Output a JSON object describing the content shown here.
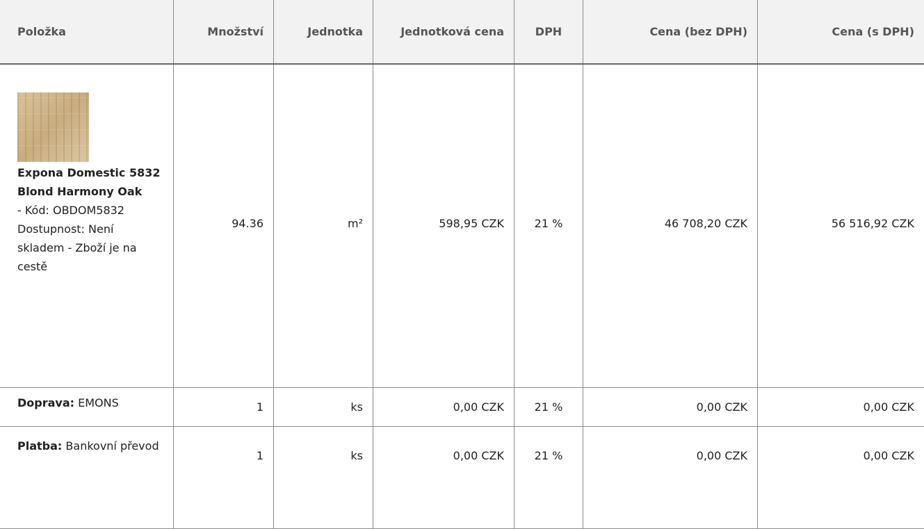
{
  "header": {
    "columns": [
      "Položka",
      "Množství",
      "Jednotka",
      "Jednotková cena",
      "DPH",
      "Cena (bez DPH)",
      "Cena (s DPH)"
    ]
  },
  "table": {
    "rows": [
      {
        "item": {
          "name": "Expona Domestic 5832 Blond Harmony Oak",
          "code": "- Kód: OBDOM5832",
          "availability": "Dostupnost: Není skladem - Zboží je na cestě"
        },
        "cells": [
          "94.36",
          "m²",
          "598,95 CZK",
          "21 %",
          "46 708,20 CZK",
          "56 516,92 CZK"
        ]
      },
      {
        "item": {
          "label": "Doprava:",
          "value": "EMONS"
        },
        "cells": [
          "1",
          "ks",
          "0,00 CZK",
          "21 %",
          "0,00 CZK",
          "0,00 CZK"
        ]
      },
      {
        "item": {
          "label": "Platba:",
          "value": "Bankovní převod"
        },
        "cells": [
          "1",
          "ks",
          "0,00 CZK",
          "21 %",
          "0,00 CZK",
          "0,00 CZK"
        ]
      }
    ]
  }
}
